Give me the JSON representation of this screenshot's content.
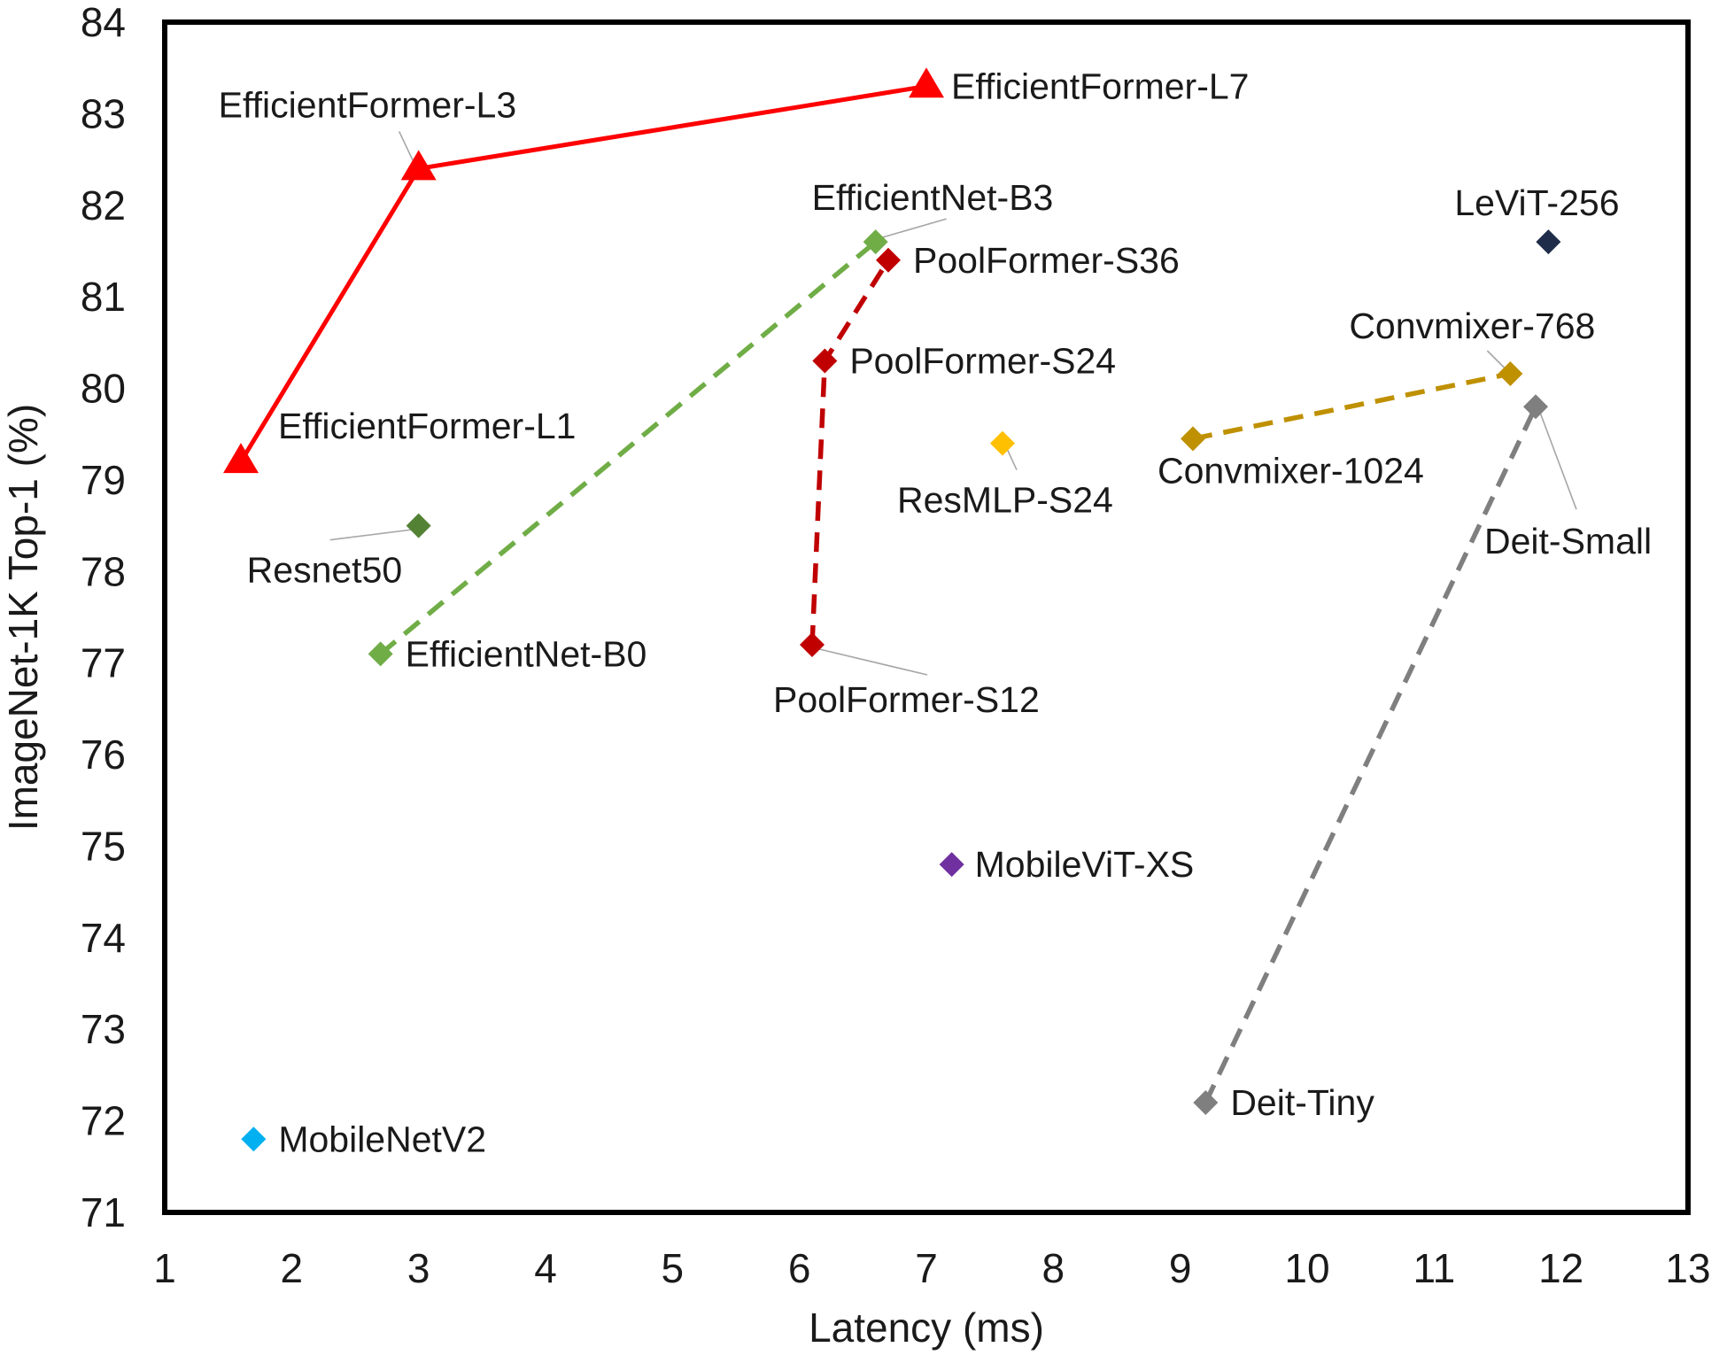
{
  "chart_data": {
    "type": "scatter",
    "title": "",
    "xlabel": "Latency (ms)",
    "ylabel": "ImageNet-1K Top-1 (%)",
    "xlim": [
      1,
      13
    ],
    "ylim": [
      71,
      84
    ],
    "xticks": [
      1,
      2,
      3,
      4,
      5,
      6,
      7,
      8,
      9,
      10,
      11,
      12,
      13
    ],
    "yticks": [
      71,
      72,
      73,
      74,
      75,
      76,
      77,
      78,
      79,
      80,
      81,
      82,
      83,
      84
    ],
    "grid": false,
    "series": [
      {
        "name": "EfficientFormer",
        "color": "#ff0000",
        "marker": "triangle",
        "line": "solid",
        "points": [
          {
            "label": "EfficientFormer-L1",
            "x": 1.6,
            "y": 79.2
          },
          {
            "label": "EfficientFormer-L3",
            "x": 3.0,
            "y": 82.4
          },
          {
            "label": "EfficientFormer-L7",
            "x": 7.0,
            "y": 83.3
          }
        ]
      },
      {
        "name": "EfficientNet",
        "color": "#70ad47",
        "marker": "diamond",
        "line": "dashed",
        "points": [
          {
            "label": "EfficientNet-B0",
            "x": 2.7,
            "y": 77.1
          },
          {
            "label": "EfficientNet-B3",
            "x": 6.6,
            "y": 81.6
          }
        ]
      },
      {
        "name": "PoolFormer",
        "color": "#c00000",
        "marker": "diamond",
        "line": "dashed",
        "points": [
          {
            "label": "PoolFormer-S12",
            "x": 6.1,
            "y": 77.2
          },
          {
            "label": "PoolFormer-S24",
            "x": 6.2,
            "y": 80.3
          },
          {
            "label": "PoolFormer-S36",
            "x": 6.7,
            "y": 81.4
          }
        ]
      },
      {
        "name": "Convmixer",
        "color": "#bf9000",
        "marker": "diamond",
        "line": "dashed",
        "points": [
          {
            "label": "Convmixer-1024",
            "x": 9.1,
            "y": 79.45
          },
          {
            "label": "Convmixer-768",
            "x": 11.6,
            "y": 80.16
          }
        ]
      },
      {
        "name": "Deit",
        "color": "#7f7f7f",
        "marker": "diamond",
        "line": "dashed",
        "points": [
          {
            "label": "Deit-Tiny",
            "x": 9.2,
            "y": 72.2
          },
          {
            "label": "Deit-Small",
            "x": 11.8,
            "y": 79.8
          }
        ]
      },
      {
        "name": "Resnet50",
        "color": "#548235",
        "marker": "diamond",
        "line": "none",
        "points": [
          {
            "label": "Resnet50",
            "x": 3.0,
            "y": 78.5
          }
        ]
      },
      {
        "name": "ResMLP-S24",
        "color": "#ffc000",
        "marker": "diamond",
        "line": "none",
        "points": [
          {
            "label": "ResMLP-S24",
            "x": 7.6,
            "y": 79.4
          }
        ]
      },
      {
        "name": "LeViT-256",
        "color": "#1f2d4a",
        "marker": "diamond",
        "line": "none",
        "points": [
          {
            "label": "LeViT-256",
            "x": 11.9,
            "y": 81.6
          }
        ]
      },
      {
        "name": "MobileViT-XS",
        "color": "#7030a0",
        "marker": "diamond",
        "line": "none",
        "points": [
          {
            "label": "MobileViT-XS",
            "x": 7.2,
            "y": 74.8
          }
        ]
      },
      {
        "name": "MobileNetV2",
        "color": "#00b0f0",
        "marker": "diamond",
        "line": "none",
        "points": [
          {
            "label": "MobileNetV2",
            "x": 1.7,
            "y": 71.8
          }
        ]
      }
    ]
  }
}
